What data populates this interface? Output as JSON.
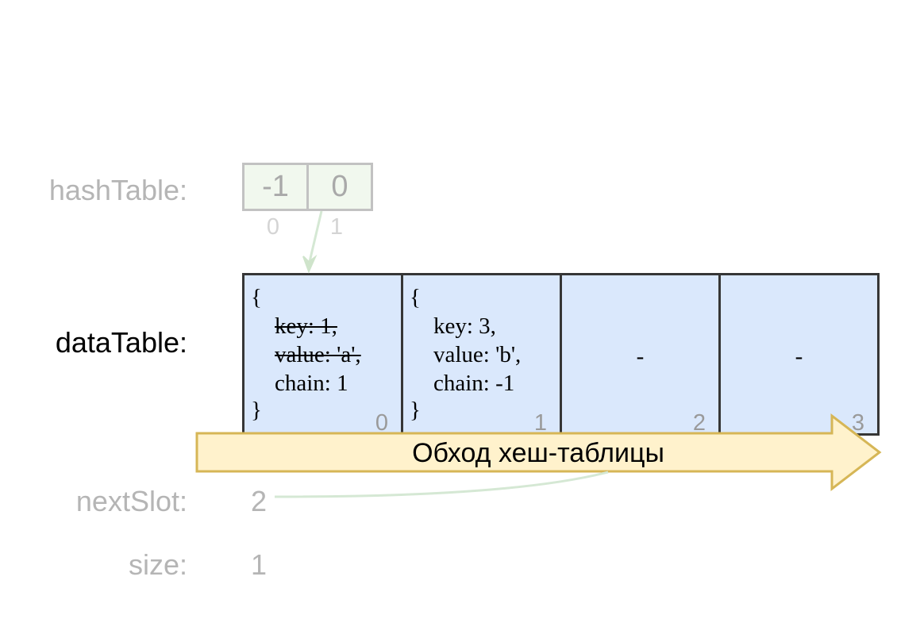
{
  "labels": {
    "hash_table": "hashTable:",
    "data_table": "dataTable:",
    "next_slot": "nextSlot:",
    "size": "size:"
  },
  "hash_table": {
    "cells": [
      "-1",
      "0"
    ],
    "indices": [
      "0",
      "1"
    ]
  },
  "data_table": {
    "cells": [
      {
        "open": "{",
        "key": "key: 1,",
        "value": "value: 'a',",
        "chain": "chain: 1",
        "close": "}",
        "index": "0",
        "deleted": true
      },
      {
        "open": "{",
        "key": "key: 3,",
        "value": "value: 'b',",
        "chain": "chain: -1",
        "close": "}",
        "index": "1",
        "deleted": false
      },
      {
        "empty": "-",
        "index": "2"
      },
      {
        "empty": "-",
        "index": "3"
      }
    ]
  },
  "next_slot": "2",
  "size": "1",
  "traversal_arrow": {
    "label": "Обход хеш-таблицы",
    "fill": "#fff2cc",
    "stroke": "#d6b656"
  },
  "colors": {
    "data_cell_fill": "#dae8fc",
    "hash_cell_fill": "#f1f8ee",
    "pointer_arrow": "#d5e8d4"
  }
}
